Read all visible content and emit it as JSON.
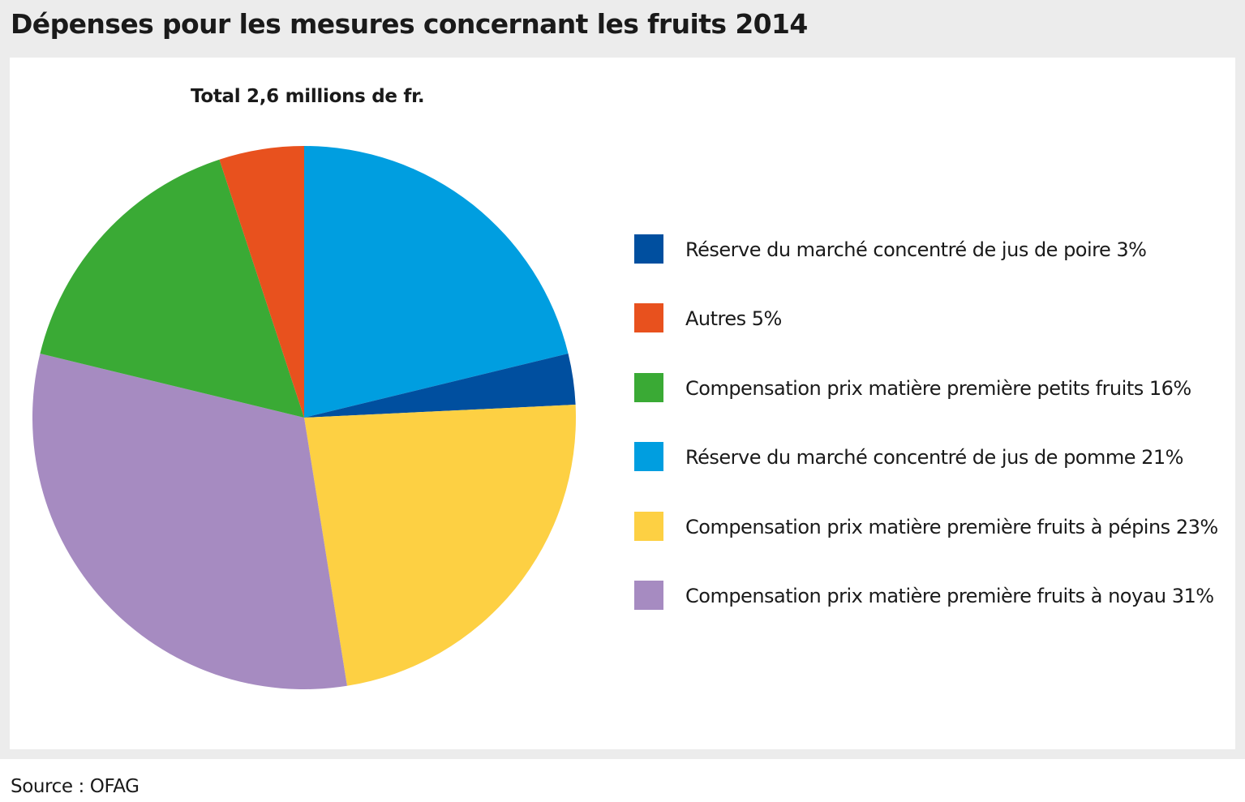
{
  "title": "Dépenses pour les mesures concernant les fruits 2014",
  "source": "Source : OFAG",
  "chart_data": {
    "type": "pie",
    "title": "Total 2,6 millions de fr.",
    "unit": "%",
    "start_angle_deg": 0,
    "direction": "clockwise",
    "slices": [
      {
        "label": "Réserve du marché concentré de jus de pomme",
        "value": 21,
        "legend_text": "Réserve du marché concentré de jus de pomme 21%",
        "color": "#009ee0"
      },
      {
        "label": "Réserve du marché concentré de jus de poire",
        "value": 3,
        "legend_text": "Réserve du marché concentré de jus de poire 3%",
        "color": "#004f9f"
      },
      {
        "label": "Compensation prix matière première fruits à pépins",
        "value": 23,
        "legend_text": "Compensation prix matière première fruits à pépins 23%",
        "color": "#fdd043"
      },
      {
        "label": "Compensation prix matière première fruits à noyau",
        "value": 31,
        "legend_text": "Compensation prix matière première fruits à noyau 31%",
        "color": "#a68bc1"
      },
      {
        "label": "Compensation prix matière première petits fruits",
        "value": 16,
        "legend_text": "Compensation prix matière première petits fruits 16%",
        "color": "#3aaa35"
      },
      {
        "label": "Autres",
        "value": 5,
        "legend_text": "Autres 5%",
        "color": "#e8511e"
      }
    ],
    "legend_order": [
      "Réserve du marché concentré de jus de poire",
      "Autres",
      "Compensation prix matière première petits fruits",
      "Réserve du marché concentré de jus de pomme",
      "Compensation prix matière première fruits à pépins",
      "Compensation prix matière première fruits à noyau"
    ],
    "legend_position": "right"
  }
}
